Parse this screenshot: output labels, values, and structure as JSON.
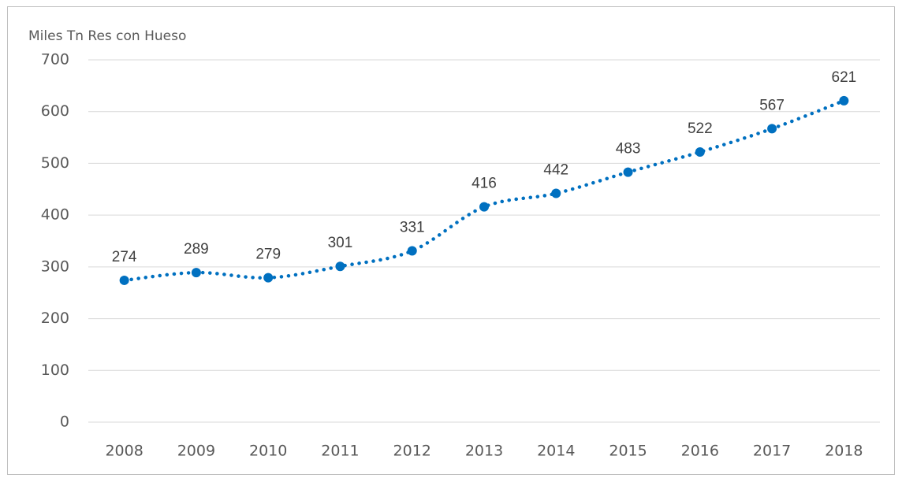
{
  "chart_data": {
    "type": "line",
    "y_label": "Miles Tn Res con Hueso",
    "categories": [
      "2008",
      "2009",
      "2010",
      "2011",
      "2012",
      "2013",
      "2014",
      "2015",
      "2016",
      "2017",
      "2018"
    ],
    "values": [
      274,
      289,
      279,
      301,
      331,
      416,
      442,
      483,
      522,
      567,
      621
    ],
    "color": "#0070c0",
    "ylim": [
      0,
      700
    ],
    "yticks": [
      0,
      100,
      200,
      300,
      400,
      500,
      600,
      700
    ],
    "grid": true
  }
}
